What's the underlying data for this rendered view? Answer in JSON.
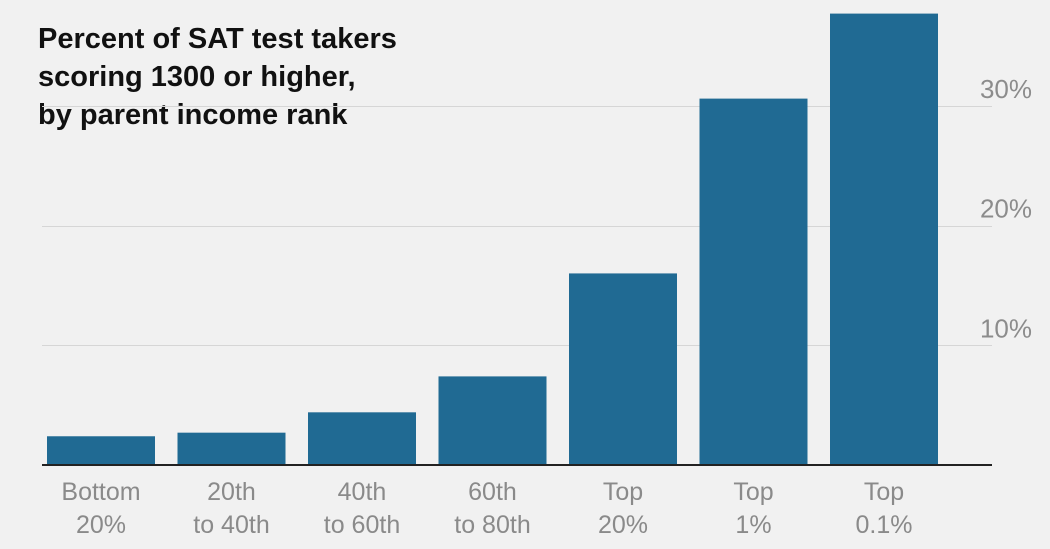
{
  "chart_data": {
    "type": "bar",
    "title_lines": [
      "Percent of SAT test takers",
      "scoring 1300 or higher,",
      "by parent income rank"
    ],
    "categories": [
      [
        "Bottom",
        "20%"
      ],
      [
        "20th",
        "to 40th"
      ],
      [
        "40th",
        "to 60th"
      ],
      [
        "60th",
        "to 80th"
      ],
      [
        "Top",
        "20%"
      ],
      [
        "Top",
        "1%"
      ],
      [
        "Top",
        "0.1%"
      ]
    ],
    "values": [
      2.4,
      2.7,
      4.4,
      7.4,
      16.0,
      30.6,
      37.7
    ],
    "ylim": [
      0,
      38
    ],
    "yticks": [
      10,
      20,
      30
    ],
    "ytick_labels": [
      "10%",
      "20%",
      "30%"
    ],
    "bar_color": "#206a93",
    "grid": true,
    "y_axis_side": "right"
  }
}
